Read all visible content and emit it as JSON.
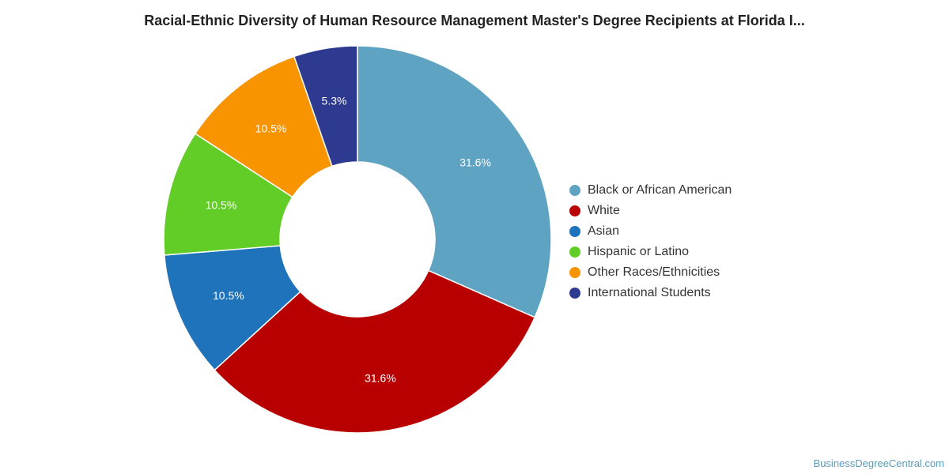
{
  "chart_data": {
    "type": "pie",
    "title": "Racial-Ethnic Diversity of Human Resource Management Master's Degree Recipients at Florida I...",
    "categories": [
      "Black or African American",
      "White",
      "Asian",
      "Hispanic or Latino",
      "Other Races/Ethnicities",
      "International Students"
    ],
    "values": [
      31.6,
      31.6,
      10.5,
      10.5,
      10.5,
      5.3
    ],
    "data_labels": [
      "31.6%",
      "31.6%",
      "10.5%",
      "10.5%",
      "10.5%",
      "5.3%"
    ],
    "colors": [
      "#5ea3c1",
      "#b80000",
      "#1f73ba",
      "#62cd27",
      "#f79400",
      "#2d3a8f"
    ],
    "donut": true,
    "legend_position": "right"
  },
  "watermark": "BusinessDegreeCentral.com"
}
